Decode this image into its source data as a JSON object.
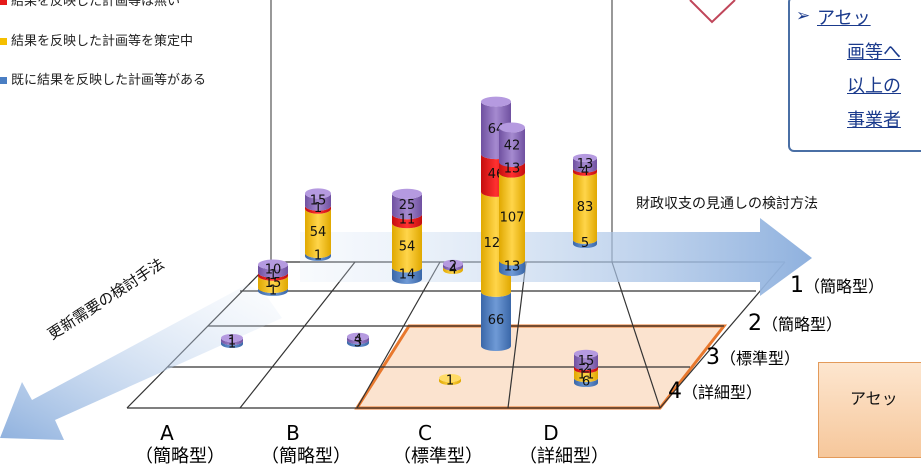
{
  "legend": [
    {
      "label": "結果を反映した計画等は無い",
      "color": "#e51a1a"
    },
    {
      "label": "結果を反映した計画等を策定中",
      "color": "#f5bf00"
    },
    {
      "label": "既に結果を反映した計画等がある",
      "color": "#4a7ec3"
    }
  ],
  "callout": {
    "bullet": "➢",
    "lines": [
      "アセッ",
      "画等へ",
      "以上の",
      "事業者"
    ]
  },
  "asset_box": {
    "label": "アセッ"
  },
  "colors": {
    "purple": "#8a6bb5",
    "red": "#e51a1a",
    "yellow": "#f5bf00",
    "blue": "#4a7ec3",
    "highlight": "#fbe3cf",
    "highlight_border": "#e8782d",
    "arrow": "#a9c4e6"
  },
  "chart_data": {
    "type": "bar",
    "title": "",
    "x_axis_label": "財政収支の見通しの検討方法",
    "depth_axis_label": "更新需要の検討手法",
    "x_categories": [
      {
        "letter": "A",
        "name": "（簡略型）"
      },
      {
        "letter": "B",
        "name": "（簡略型）"
      },
      {
        "letter": "C",
        "name": "（標準型）"
      },
      {
        "letter": "D",
        "name": "（詳細型）"
      }
    ],
    "depth_categories": [
      {
        "num": "1",
        "name": "（簡略型）"
      },
      {
        "num": "2",
        "name": "（簡略型）"
      },
      {
        "num": "3",
        "name": "（標準型）"
      },
      {
        "num": "4",
        "name": "（詳細型）"
      }
    ],
    "series_order": [
      "既に結果を反映した計画等がある",
      "結果を反映した計画等を策定中",
      "結果を反映した計画等は無い",
      "purple_top"
    ],
    "bars": [
      {
        "x": "B",
        "depth": "1",
        "blue": 1,
        "yellow": 54,
        "red": 1,
        "purple": 15
      },
      {
        "x": "C",
        "depth": "1",
        "blue": 14,
        "yellow": 54,
        "red": 11,
        "purple": 25
      },
      {
        "x": "C",
        "depth": "1b",
        "blue": 0,
        "yellow": 4,
        "red": 0,
        "purple": 2
      },
      {
        "x": "C",
        "depth": "2",
        "blue": 66,
        "yellow": 122,
        "red": 46,
        "purple": 64
      },
      {
        "x": "D",
        "depth": "1",
        "blue": 13,
        "yellow": 107,
        "red": 13,
        "purple": 42
      },
      {
        "x": "D",
        "depth": "1b",
        "blue": 5,
        "yellow": 83,
        "red": 4,
        "purple": 13
      },
      {
        "x": "A",
        "depth": "2",
        "blue": 1,
        "yellow": 15,
        "red": 1,
        "purple": 10
      },
      {
        "x": "A",
        "depth": "3",
        "blue": 1,
        "yellow": 0,
        "red": 0,
        "purple": 1
      },
      {
        "x": "B",
        "depth": "3",
        "blue": 3,
        "yellow": 0,
        "red": 0,
        "purple": 4
      },
      {
        "x": "C",
        "depth": "4",
        "blue": 0,
        "yellow": 1,
        "red": 0,
        "purple": 0
      },
      {
        "x": "D",
        "depth": "4",
        "blue": 6,
        "yellow": 11,
        "red": 2,
        "purple": 15
      }
    ],
    "highlighted_region": "C-D × 4"
  }
}
